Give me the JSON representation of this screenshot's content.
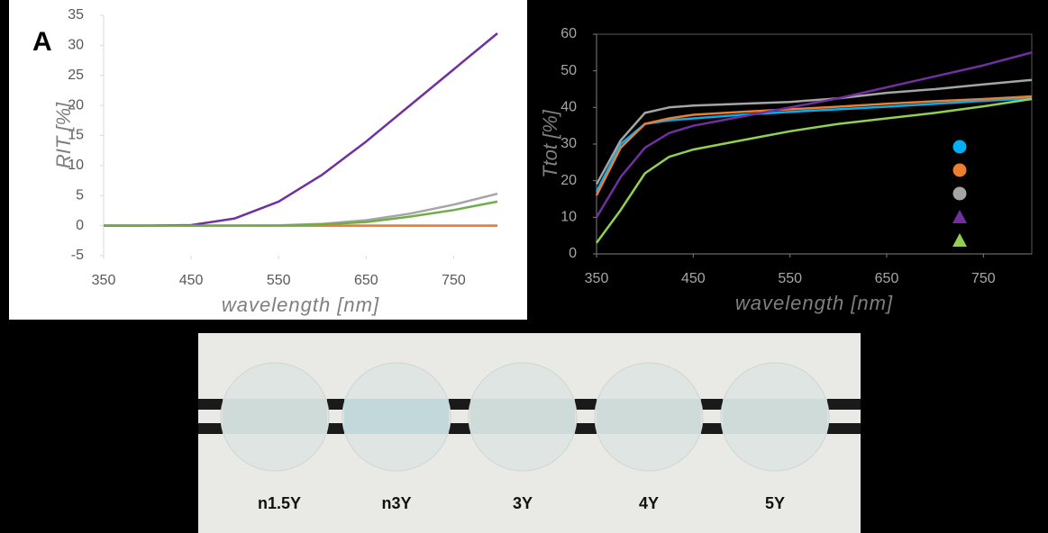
{
  "chart_data": [
    {
      "type": "line",
      "panel_label": "A",
      "y_label": "RIT [%]",
      "x_label": "wavelength [nm]",
      "xlim": [
        350,
        800
      ],
      "xticks": [
        350,
        450,
        550,
        650,
        750
      ],
      "ylim": [
        -5,
        35
      ],
      "yticks": [
        -5,
        0,
        5,
        10,
        15,
        20,
        25,
        30,
        35
      ],
      "x": [
        350,
        400,
        450,
        500,
        550,
        600,
        650,
        700,
        750,
        800
      ],
      "series": [
        {
          "color": "#5b9bd5",
          "marker": "circle",
          "values": [
            0,
            0,
            0,
            0,
            0,
            0,
            0,
            0,
            0,
            0
          ]
        },
        {
          "color": "#ed7d31",
          "marker": "circle",
          "values": [
            0,
            0,
            0,
            0,
            0,
            0,
            0,
            0,
            0,
            0
          ]
        },
        {
          "color": "#a5a5a5",
          "marker": "circle",
          "values": [
            0,
            0,
            0,
            0,
            0.05,
            0.3,
            0.9,
            2,
            3.5,
            5.3
          ]
        },
        {
          "color": "#7030a0",
          "marker": "triangle",
          "values": [
            0,
            0,
            0.1,
            1.2,
            4,
            8.5,
            14,
            20,
            26,
            32
          ]
        },
        {
          "color": "#70ad47",
          "marker": "triangle",
          "values": [
            0,
            0,
            0,
            0,
            0.02,
            0.2,
            0.6,
            1.5,
            2.6,
            4
          ]
        }
      ]
    },
    {
      "type": "line",
      "y_label": "Ttot [%]",
      "x_label": "wavelength [nm]",
      "legend": true,
      "xlim": [
        350,
        800
      ],
      "xticks": [
        350,
        450,
        550,
        650,
        750
      ],
      "ylim": [
        0,
        60
      ],
      "yticks": [
        0,
        10,
        20,
        30,
        40,
        50,
        60
      ],
      "x": [
        350,
        375,
        400,
        425,
        450,
        500,
        550,
        600,
        650,
        700,
        750,
        800
      ],
      "series": [
        {
          "color": "#00b0f0",
          "marker": "circle",
          "values": [
            17,
            30,
            35.5,
            36.5,
            37,
            38,
            38.8,
            39.5,
            40.2,
            41,
            41.8,
            42.5
          ]
        },
        {
          "color": "#ed7d31",
          "marker": "circle",
          "values": [
            16,
            29,
            35.5,
            37,
            38,
            38.8,
            39.5,
            40.2,
            41,
            41.7,
            42.3,
            43
          ]
        },
        {
          "color": "#a5a5a5",
          "marker": "circle",
          "values": [
            19,
            31,
            38.5,
            40,
            40.5,
            41,
            41.5,
            42.5,
            44,
            45,
            46.3,
            47.5
          ]
        },
        {
          "color": "#7030a0",
          "marker": "triangle",
          "values": [
            10,
            21,
            29,
            33,
            35,
            37.5,
            40,
            42.5,
            45.5,
            48.5,
            51.5,
            55
          ]
        },
        {
          "color": "#92d050",
          "marker": "triangle",
          "values": [
            3,
            12,
            22,
            26.5,
            28.5,
            31,
            33.5,
            35.5,
            37,
            38.5,
            40.3,
            42.3
          ]
        }
      ]
    }
  ],
  "photo": {
    "labels": [
      "n1.5Y",
      "n3Y",
      "3Y",
      "4Y",
      "5Y"
    ]
  }
}
